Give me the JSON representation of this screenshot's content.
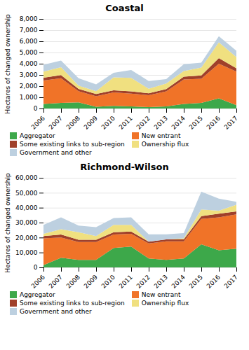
{
  "chart_data": [
    {
      "type": "area",
      "stacked": true,
      "title": "Coastal",
      "ylabel": "Hectares of changed ownership",
      "x": [
        2006,
        2007,
        2008,
        2009,
        2010,
        2011,
        2012,
        2013,
        2014,
        2015,
        2016,
        2017
      ],
      "xlim": [
        2006,
        2017
      ],
      "xticks": [
        2006,
        2007,
        2008,
        2009,
        2010,
        2011,
        2012,
        2013,
        2014,
        2015,
        2016,
        2017
      ],
      "ylim": [
        0,
        8000
      ],
      "yticks": [
        0,
        {
          "value": 1000,
          "label": "1,000"
        },
        {
          "value": 2000,
          "label": "2,000"
        },
        {
          "value": 3000,
          "label": "3,000"
        },
        {
          "value": 4000,
          "label": "4,000"
        },
        {
          "value": 5000,
          "label": "5,000"
        },
        {
          "value": 6000,
          "label": "6,000"
        },
        {
          "value": 7000,
          "label": "7,000"
        },
        {
          "value": 8000,
          "label": "8,000"
        }
      ],
      "grid": true,
      "legend": "bottom",
      "series": [
        {
          "name": "Aggregator",
          "color": "#3DA84A",
          "values": [
            400,
            500,
            550,
            150,
            230,
            180,
            130,
            180,
            400,
            500,
            900,
            300
          ]
        },
        {
          "name": "New entrant",
          "color": "#F07328",
          "values": [
            2100,
            2200,
            1000,
            950,
            1200,
            1150,
            1050,
            1350,
            2200,
            2150,
            3100,
            3000
          ]
        },
        {
          "name": "Some existing links to sub-region",
          "color": "#A0402A",
          "values": [
            250,
            280,
            200,
            200,
            200,
            200,
            180,
            200,
            250,
            300,
            500,
            300
          ]
        },
        {
          "name": "Ownership flux",
          "color": "#F0E080",
          "values": [
            550,
            700,
            300,
            250,
            1150,
            1200,
            400,
            500,
            500,
            700,
            1400,
            1000
          ]
        },
        {
          "name": "Government and other",
          "color": "#BDD0E0",
          "values": [
            600,
            600,
            650,
            600,
            400,
            700,
            700,
            400,
            600,
            450,
            550,
            550
          ]
        }
      ]
    },
    {
      "type": "area",
      "stacked": true,
      "title": "Richmond-Wilson",
      "ylabel": "Hectares of changed ownership",
      "x": [
        2006,
        2007,
        2008,
        2009,
        2010,
        2011,
        2012,
        2013,
        2014,
        2015,
        2016,
        2017
      ],
      "xlim": [
        2006,
        2017
      ],
      "xticks": [
        2006,
        2007,
        2008,
        2009,
        2010,
        2011,
        2012,
        2013,
        2014,
        2015,
        2016,
        2017
      ],
      "ylim": [
        0,
        60000
      ],
      "yticks": [
        0,
        {
          "value": 10000,
          "label": "10,000"
        },
        {
          "value": 20000,
          "label": "20,000"
        },
        {
          "value": 30000,
          "label": "30,000"
        },
        {
          "value": 40000,
          "label": "40,000"
        },
        {
          "value": 50000,
          "label": "50,000"
        },
        {
          "value": 60000,
          "label": "60,000"
        }
      ],
      "grid": true,
      "legend": "bottom",
      "series": [
        {
          "name": "Aggregator",
          "color": "#3DA84A",
          "values": [
            1500,
            6500,
            5000,
            5000,
            13000,
            14000,
            6000,
            5000,
            6000,
            15500,
            11500,
            12500
          ]
        },
        {
          "name": "New entrant",
          "color": "#F07328",
          "values": [
            18000,
            13500,
            12000,
            12000,
            9000,
            8500,
            10000,
            12500,
            11500,
            17000,
            22000,
            23000
          ]
        },
        {
          "name": "Some existing links to sub-region",
          "color": "#A0402A",
          "values": [
            1500,
            2000,
            1500,
            1500,
            1500,
            1500,
            1200,
            1200,
            1200,
            1800,
            2500,
            2000
          ]
        },
        {
          "name": "Ownership flux",
          "color": "#F0E080",
          "values": [
            1500,
            3500,
            5000,
            2500,
            5000,
            4500,
            0,
            0,
            800,
            4500,
            2000,
            4500
          ]
        },
        {
          "name": "Government and other",
          "color": "#BDD0E0",
          "values": [
            6000,
            8000,
            4500,
            6000,
            4500,
            5000,
            5000,
            3500,
            3500,
            12000,
            8000,
            2000
          ]
        }
      ]
    }
  ]
}
